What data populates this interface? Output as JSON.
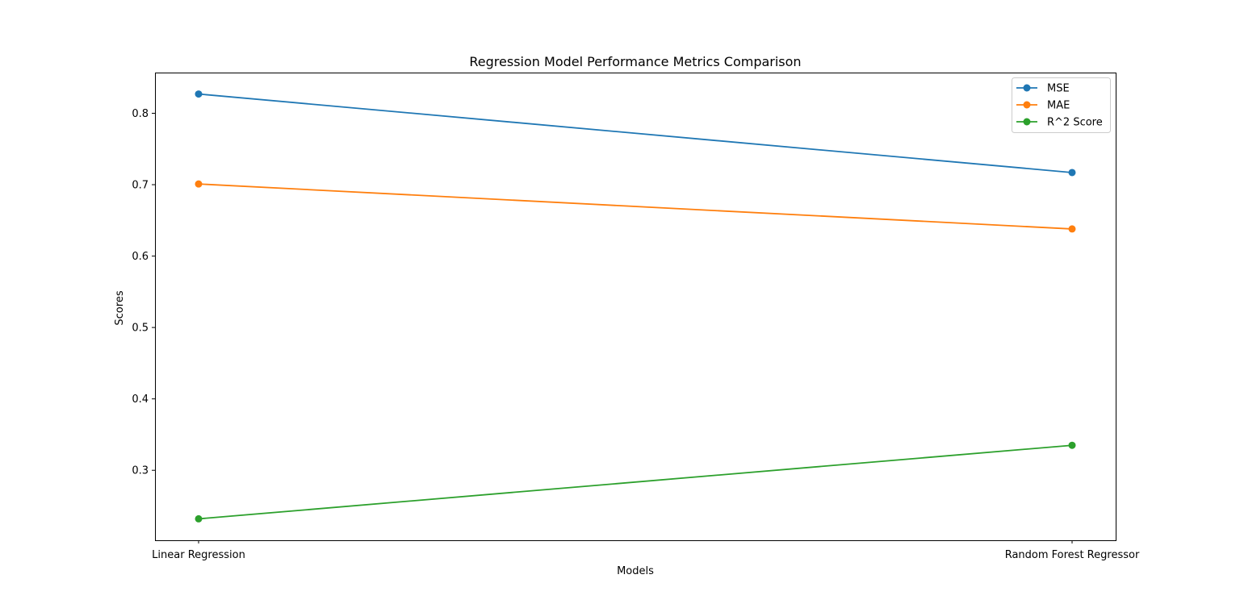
{
  "chart_data": {
    "type": "line",
    "title": "Regression Model Performance Metrics Comparison",
    "xlabel": "Models",
    "ylabel": "Scores",
    "categories": [
      "Linear Regression",
      "Random Forest Regressor"
    ],
    "ylim": [
      0.202,
      0.857
    ],
    "yticks": [
      0.3,
      0.4,
      0.5,
      0.6,
      0.7,
      0.8
    ],
    "grid": false,
    "legend_position": "upper right",
    "series": [
      {
        "name": "MSE",
        "color": "#1f77b4",
        "values": [
          0.827,
          0.717
        ]
      },
      {
        "name": "MAE",
        "color": "#ff7f0e",
        "values": [
          0.701,
          0.638
        ]
      },
      {
        "name": "R^2 Score",
        "color": "#2ca02c",
        "values": [
          0.232,
          0.335
        ]
      }
    ]
  }
}
